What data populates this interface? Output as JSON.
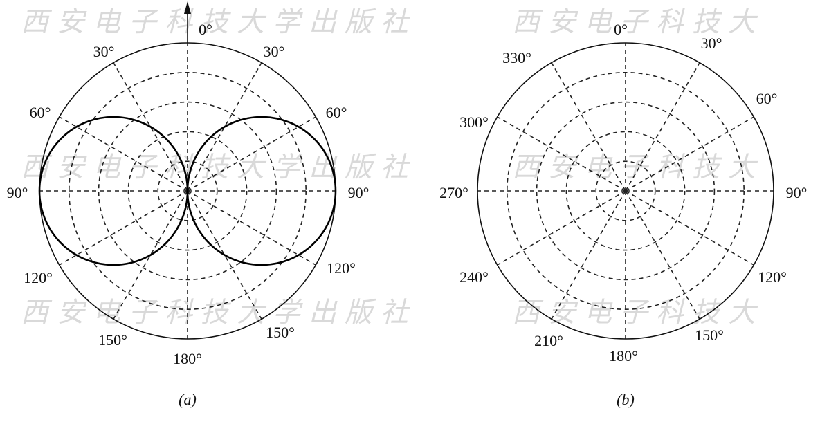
{
  "watermark": {
    "text": "西安电子科技大学出版社",
    "color": "#d6d6d6"
  },
  "colors": {
    "line": "#111111",
    "grid": "#222222",
    "pattern": "#000000"
  },
  "diagrams": [
    {
      "id": "a",
      "caption": "(a)",
      "has_arrow": true,
      "pattern": "figure-eight",
      "angle_labels": [
        {
          "key": "top",
          "angle": 0,
          "text": "0°"
        },
        {
          "key": "upper-right-30",
          "angle": 30,
          "text": "30°"
        },
        {
          "key": "upper-right-60",
          "angle": 60,
          "text": "60°"
        },
        {
          "key": "right-90",
          "angle": 90,
          "text": "90°"
        },
        {
          "key": "lower-right-120",
          "angle": 120,
          "text": "120°"
        },
        {
          "key": "lower-right-150",
          "angle": 150,
          "text": "150°"
        },
        {
          "key": "bottom-180",
          "angle": 180,
          "text": "180°"
        },
        {
          "key": "lower-left-150",
          "angle": 210,
          "text": "150°"
        },
        {
          "key": "lower-left-120",
          "angle": 240,
          "text": "120°"
        },
        {
          "key": "left-90",
          "angle": 270,
          "text": "90°"
        },
        {
          "key": "upper-left-60",
          "angle": 300,
          "text": "60°"
        },
        {
          "key": "upper-left-30",
          "angle": 330,
          "text": "30°"
        }
      ]
    },
    {
      "id": "b",
      "caption": "(b)",
      "has_arrow": false,
      "pattern": "none",
      "angle_labels": [
        {
          "key": "top",
          "angle": 0,
          "text": "0°"
        },
        {
          "key": "deg-30",
          "angle": 30,
          "text": "30°"
        },
        {
          "key": "deg-60",
          "angle": 60,
          "text": "60°"
        },
        {
          "key": "deg-90",
          "angle": 90,
          "text": "90°"
        },
        {
          "key": "deg-120",
          "angle": 120,
          "text": "120°"
        },
        {
          "key": "deg-150",
          "angle": 150,
          "text": "150°"
        },
        {
          "key": "deg-180",
          "angle": 180,
          "text": "180°"
        },
        {
          "key": "deg-210",
          "angle": 210,
          "text": "210°"
        },
        {
          "key": "deg-240",
          "angle": 240,
          "text": "240°"
        },
        {
          "key": "deg-270",
          "angle": 270,
          "text": "270°"
        },
        {
          "key": "deg-300",
          "angle": 300,
          "text": "300°"
        },
        {
          "key": "deg-330",
          "angle": 330,
          "text": "330°"
        }
      ]
    }
  ]
}
